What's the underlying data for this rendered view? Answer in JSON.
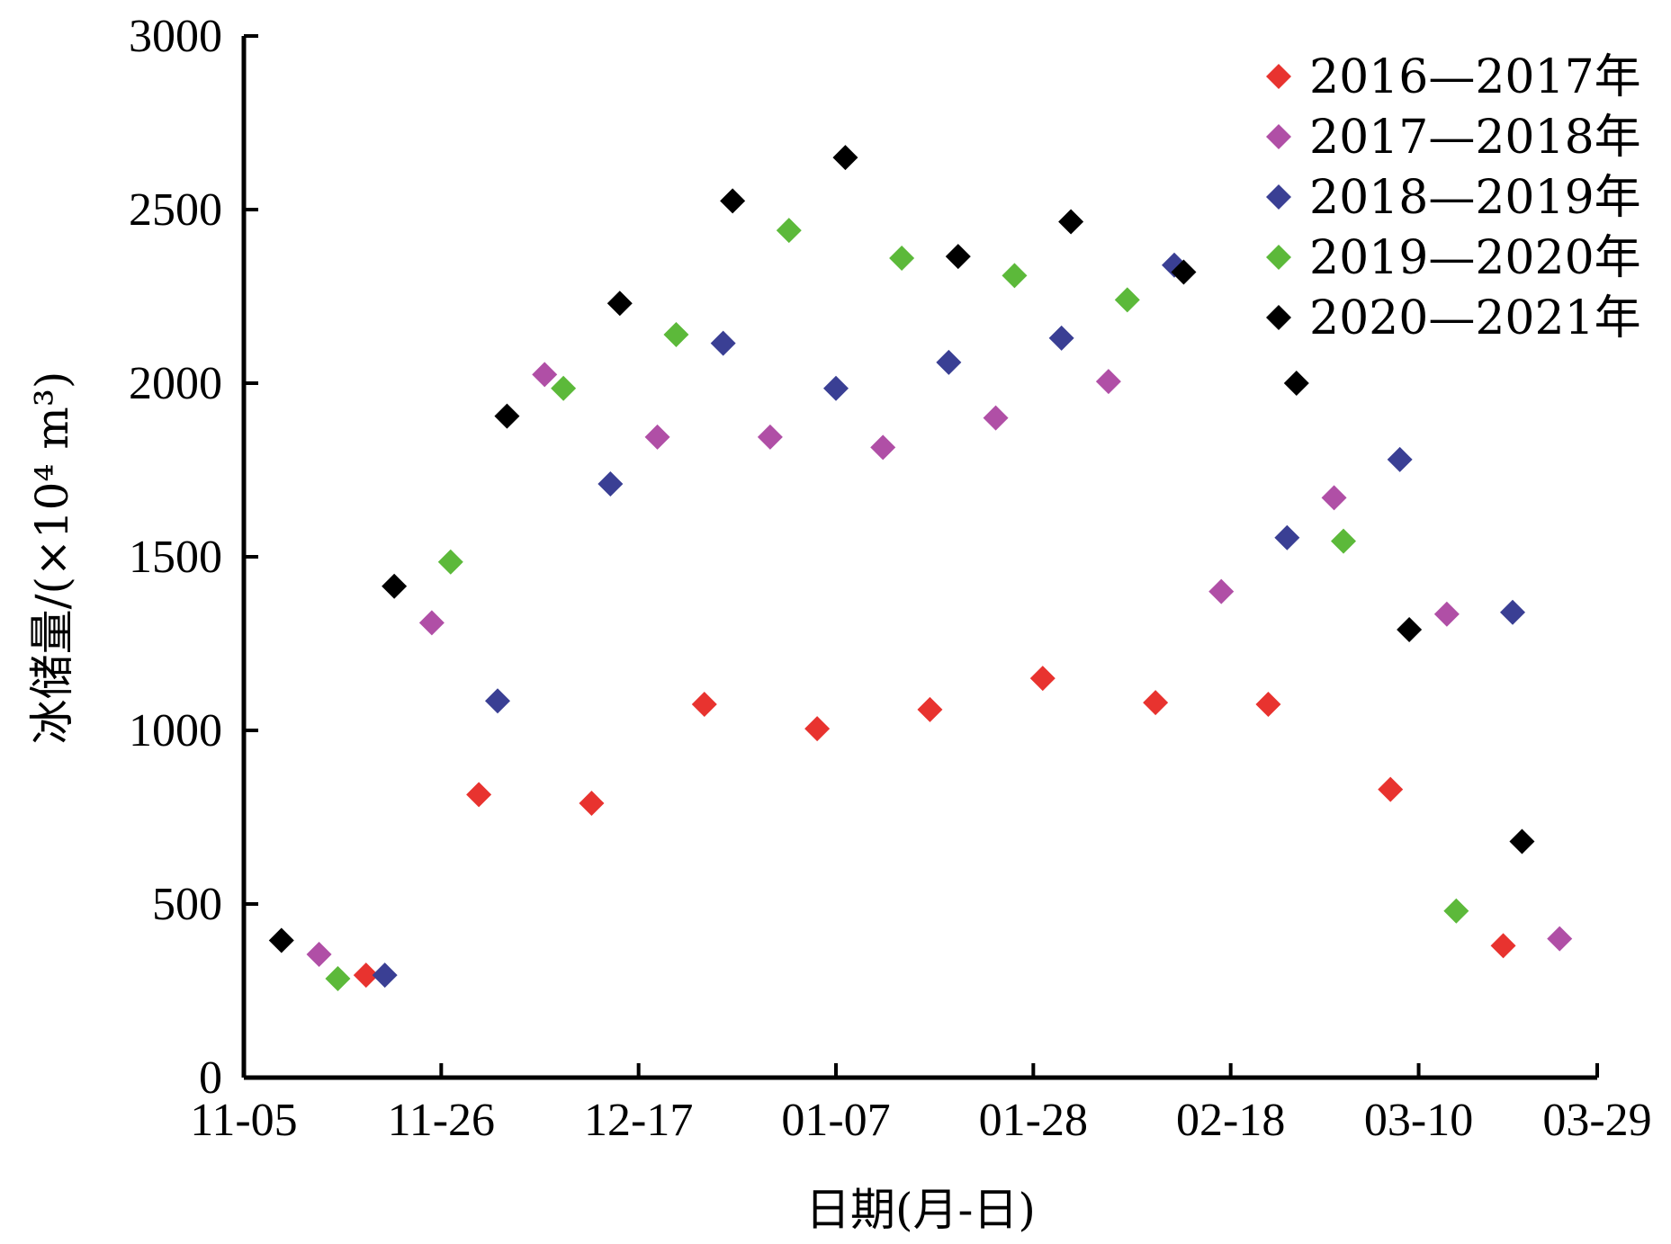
{
  "chart_data": {
    "type": "scatter",
    "title": "",
    "xlabel": "日期(月-日)",
    "ylabel": "冰储量/(×10⁴ m³)",
    "ylim": [
      0,
      3000
    ],
    "yticks": [
      "0",
      "500",
      "1000",
      "1500",
      "2000",
      "2500",
      "3000"
    ],
    "xlim": [
      "11-05",
      "03-29"
    ],
    "xticks": [
      "11-05",
      "11-26",
      "12-17",
      "01-07",
      "01-28",
      "02-18",
      "03-10",
      "03-29"
    ],
    "legend_position": "top-right",
    "grid": false,
    "marker": "diamond",
    "series": [
      {
        "name": "2016—2017年",
        "color": "#e8332f",
        "points": [
          {
            "x": "11-18",
            "y": 295
          },
          {
            "x": "11-30",
            "y": 815
          },
          {
            "x": "12-12",
            "y": 790
          },
          {
            "x": "12-24",
            "y": 1075
          },
          {
            "x": "01-05",
            "y": 1005
          },
          {
            "x": "01-17",
            "y": 1060
          },
          {
            "x": "01-29",
            "y": 1150
          },
          {
            "x": "02-10",
            "y": 1080
          },
          {
            "x": "02-22",
            "y": 1075
          },
          {
            "x": "03-07",
            "y": 830
          },
          {
            "x": "03-19",
            "y": 380
          }
        ]
      },
      {
        "name": "2017—2018年",
        "color": "#b04fa6",
        "points": [
          {
            "x": "11-13",
            "y": 355
          },
          {
            "x": "11-25",
            "y": 1310
          },
          {
            "x": "12-07",
            "y": 2025
          },
          {
            "x": "12-19",
            "y": 1845
          },
          {
            "x": "12-31",
            "y": 1845
          },
          {
            "x": "01-12",
            "y": 1815
          },
          {
            "x": "01-24",
            "y": 1900
          },
          {
            "x": "02-05",
            "y": 2005
          },
          {
            "x": "02-17",
            "y": 1400
          },
          {
            "x": "03-01",
            "y": 1670
          },
          {
            "x": "03-13",
            "y": 1335
          },
          {
            "x": "03-25",
            "y": 400
          }
        ]
      },
      {
        "name": "2018—2019年",
        "color": "#3a3f94",
        "points": [
          {
            "x": "11-20",
            "y": 295
          },
          {
            "x": "12-02",
            "y": 1085
          },
          {
            "x": "12-14",
            "y": 1710
          },
          {
            "x": "12-26",
            "y": 2115
          },
          {
            "x": "01-07",
            "y": 1985
          },
          {
            "x": "01-19",
            "y": 2060
          },
          {
            "x": "01-31",
            "y": 2130
          },
          {
            "x": "02-12",
            "y": 2340
          },
          {
            "x": "02-24",
            "y": 1555
          },
          {
            "x": "03-08",
            "y": 1780
          },
          {
            "x": "03-20",
            "y": 1340
          }
        ]
      },
      {
        "name": "2019—2020年",
        "color": "#5cb93a",
        "points": [
          {
            "x": "11-15",
            "y": 285
          },
          {
            "x": "11-27",
            "y": 1485
          },
          {
            "x": "12-09",
            "y": 1985
          },
          {
            "x": "12-21",
            "y": 2140
          },
          {
            "x": "01-02",
            "y": 2440
          },
          {
            "x": "01-14",
            "y": 2360
          },
          {
            "x": "01-26",
            "y": 2310
          },
          {
            "x": "02-07",
            "y": 2240
          },
          {
            "x": "03-02",
            "y": 1545
          },
          {
            "x": "03-14",
            "y": 480
          }
        ]
      },
      {
        "name": "2020—2021年",
        "color": "#000000",
        "points": [
          {
            "x": "11-09",
            "y": 395
          },
          {
            "x": "11-21",
            "y": 1415
          },
          {
            "x": "12-03",
            "y": 1905
          },
          {
            "x": "12-15",
            "y": 2230
          },
          {
            "x": "12-27",
            "y": 2525
          },
          {
            "x": "01-08",
            "y": 2650
          },
          {
            "x": "01-20",
            "y": 2365
          },
          {
            "x": "02-01",
            "y": 2465
          },
          {
            "x": "02-13",
            "y": 2320
          },
          {
            "x": "02-25",
            "y": 2000
          },
          {
            "x": "03-09",
            "y": 1290
          },
          {
            "x": "03-21",
            "y": 680
          }
        ]
      }
    ]
  }
}
